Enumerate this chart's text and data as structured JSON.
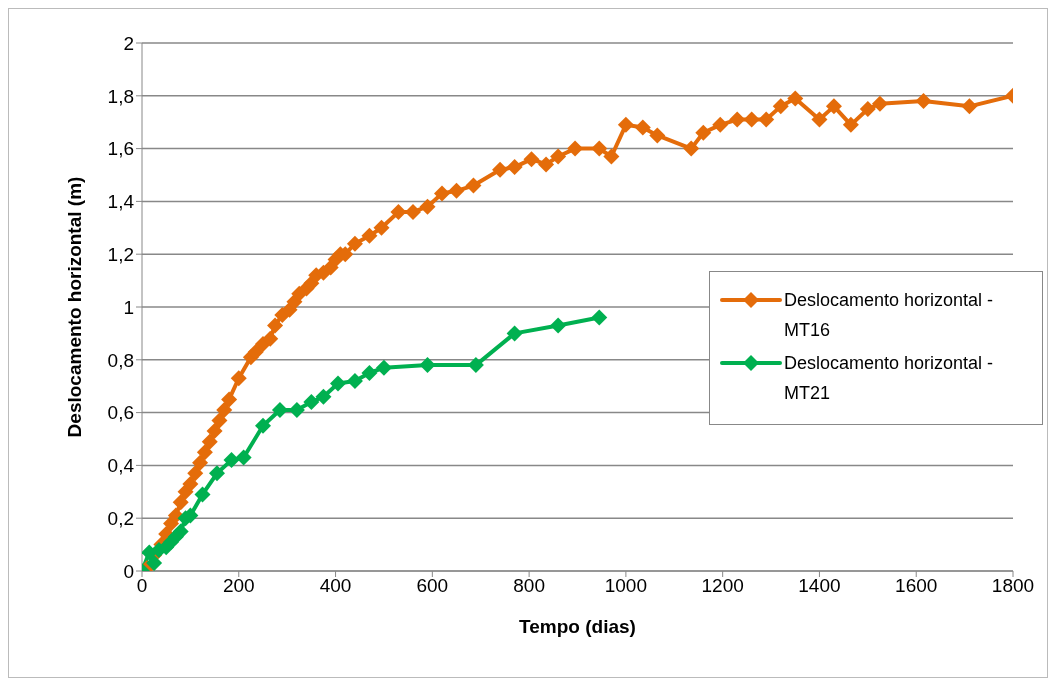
{
  "chart_data": {
    "type": "line",
    "xlabel": "Tempo (dias)",
    "ylabel": "Deslocamento horizontal (m)",
    "xlim": [
      0,
      1800
    ],
    "xticks": [
      0,
      200,
      400,
      600,
      800,
      1000,
      1200,
      1400,
      1600,
      1800
    ],
    "ylim": [
      0,
      2
    ],
    "yticks": [
      0,
      {
        "value": 0.2,
        "label": "0,2"
      },
      {
        "value": 0.4,
        "label": "0,4"
      },
      {
        "value": 0.6,
        "label": "0,6"
      },
      {
        "value": 0.8,
        "label": "0,8"
      },
      1,
      {
        "value": 1.2,
        "label": "1,2"
      },
      {
        "value": 1.4,
        "label": "1,4"
      },
      {
        "value": 1.6,
        "label": "1,6"
      },
      {
        "value": 1.8,
        "label": "1,8"
      },
      2
    ],
    "grid": "y",
    "legend": "right",
    "marker": "diamond",
    "line_style": "solid",
    "series": [
      {
        "name": "Deslocamento horizontal - MT16",
        "color": "#e46c0a",
        "x": [
          10,
          25,
          40,
          50,
          60,
          70,
          80,
          90,
          100,
          110,
          120,
          130,
          140,
          150,
          160,
          170,
          180,
          200,
          225,
          235,
          250,
          265,
          275,
          290,
          305,
          315,
          325,
          340,
          350,
          360,
          375,
          390,
          400,
          410,
          420,
          440,
          470,
          495,
          530,
          560,
          590,
          620,
          650,
          685,
          740,
          770,
          805,
          835,
          860,
          895,
          945,
          970,
          1000,
          1035,
          1065,
          1135,
          1160,
          1195,
          1230,
          1260,
          1290,
          1320,
          1350,
          1400,
          1430,
          1465,
          1500,
          1525,
          1615,
          1710,
          1800
        ],
        "values": [
          0.01,
          0.06,
          0.1,
          0.14,
          0.18,
          0.21,
          0.26,
          0.3,
          0.33,
          0.37,
          0.41,
          0.45,
          0.49,
          0.53,
          0.57,
          0.61,
          0.65,
          0.73,
          0.81,
          0.83,
          0.86,
          0.88,
          0.93,
          0.97,
          0.99,
          1.02,
          1.05,
          1.07,
          1.09,
          1.12,
          1.13,
          1.15,
          1.18,
          1.2,
          1.2,
          1.24,
          1.27,
          1.3,
          1.36,
          1.36,
          1.38,
          1.43,
          1.44,
          1.46,
          1.52,
          1.53,
          1.56,
          1.54,
          1.57,
          1.6,
          1.6,
          1.57,
          1.69,
          1.68,
          1.65,
          1.6,
          1.66,
          1.69,
          1.71,
          1.71,
          1.71,
          1.76,
          1.79,
          1.71,
          1.76,
          1.69,
          1.75,
          1.77,
          1.78,
          1.76,
          1.8
        ]
      },
      {
        "name": "Deslocamento horizontal - MT21",
        "color": "#00b050",
        "x": [
          0,
          15,
          25,
          35,
          50,
          60,
          70,
          80,
          90,
          100,
          125,
          155,
          185,
          210,
          250,
          285,
          320,
          350,
          375,
          405,
          440,
          470,
          500,
          590,
          690,
          770,
          860,
          945
        ],
        "values": [
          0,
          0.07,
          0.03,
          0.08,
          0.09,
          0.11,
          0.13,
          0.15,
          0.2,
          0.21,
          0.29,
          0.37,
          0.42,
          0.43,
          0.55,
          0.61,
          0.61,
          0.64,
          0.66,
          0.71,
          0.72,
          0.75,
          0.77,
          0.78,
          0.78,
          0.9,
          0.93,
          0.96
        ]
      }
    ]
  }
}
